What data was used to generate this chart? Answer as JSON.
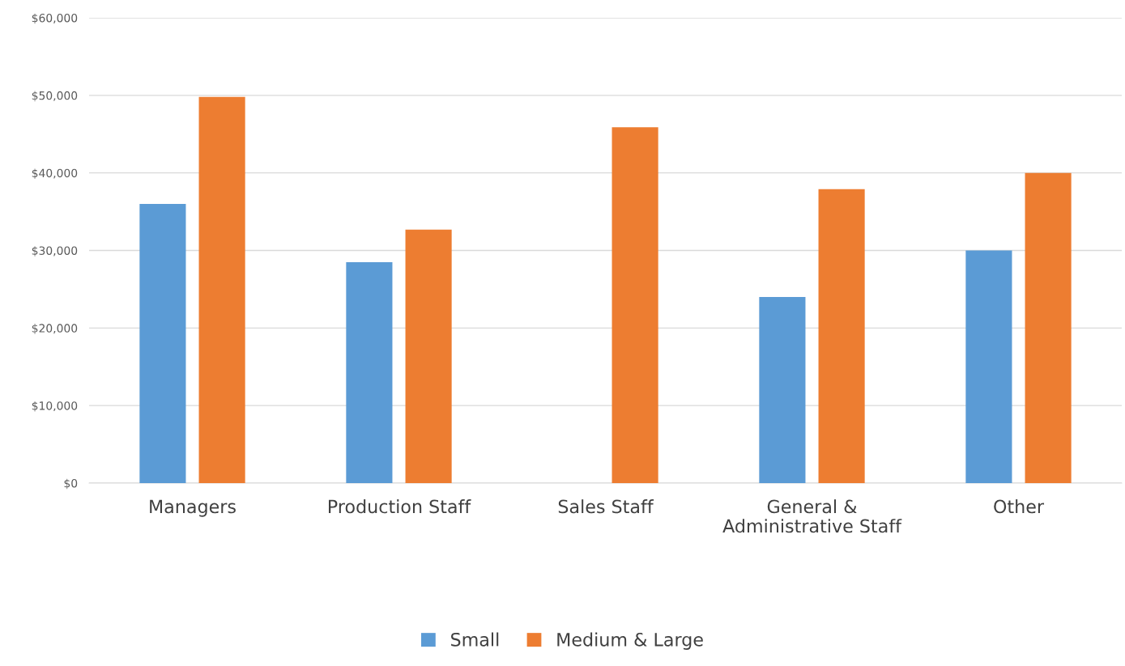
{
  "chart_data": {
    "type": "bar",
    "categories": [
      "Managers",
      "Production Staff",
      "Sales Staff",
      "General & Administrative Staff",
      "Other"
    ],
    "series": [
      {
        "name": "Small",
        "color": "#5b9bd5",
        "values": [
          36000,
          28500,
          null,
          24000,
          30000
        ]
      },
      {
        "name": "Medium & Large",
        "color": "#ed7d31",
        "values": [
          49800,
          32700,
          45900,
          37900,
          40000
        ]
      }
    ],
    "ylim": [
      0,
      60000
    ],
    "yticks": [
      {
        "value": 0,
        "label": "$0"
      },
      {
        "value": 10000,
        "label": "$10,000"
      },
      {
        "value": 20000,
        "label": "$20,000"
      },
      {
        "value": 30000,
        "label": "$30,000"
      },
      {
        "value": 40000,
        "label": "$40,000"
      },
      {
        "value": 50000,
        "label": "$50,000"
      },
      {
        "value": 60000,
        "label": "$60,000"
      }
    ],
    "grid": "y",
    "legend": "bottom"
  }
}
